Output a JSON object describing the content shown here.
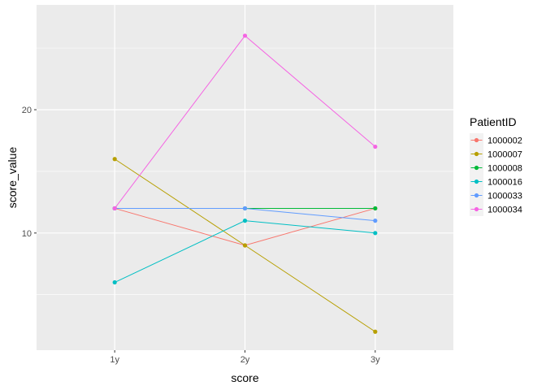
{
  "chart_data": {
    "type": "line",
    "xlabel": "score",
    "ylabel": "score_value",
    "categories": [
      "1y",
      "2y",
      "3y"
    ],
    "ylim": [
      0.5,
      28.5
    ],
    "y_ticks": [
      10,
      20
    ],
    "grid": true,
    "legend": {
      "title": "PatientID",
      "placement": "right"
    },
    "series": [
      {
        "name": "1000002",
        "color": "#F8766D",
        "values": [
          12,
          9,
          12
        ]
      },
      {
        "name": "1000007",
        "color": "#B79F00",
        "values": [
          16,
          9,
          2
        ]
      },
      {
        "name": "1000008",
        "color": "#00BA38",
        "values": [
          12,
          12,
          12
        ]
      },
      {
        "name": "1000016",
        "color": "#00BFC4",
        "values": [
          6,
          11,
          10
        ]
      },
      {
        "name": "1000033",
        "color": "#619CFF",
        "values": [
          12,
          12,
          11
        ]
      },
      {
        "name": "1000034",
        "color": "#F564E3",
        "values": [
          12,
          26,
          17
        ]
      }
    ]
  }
}
